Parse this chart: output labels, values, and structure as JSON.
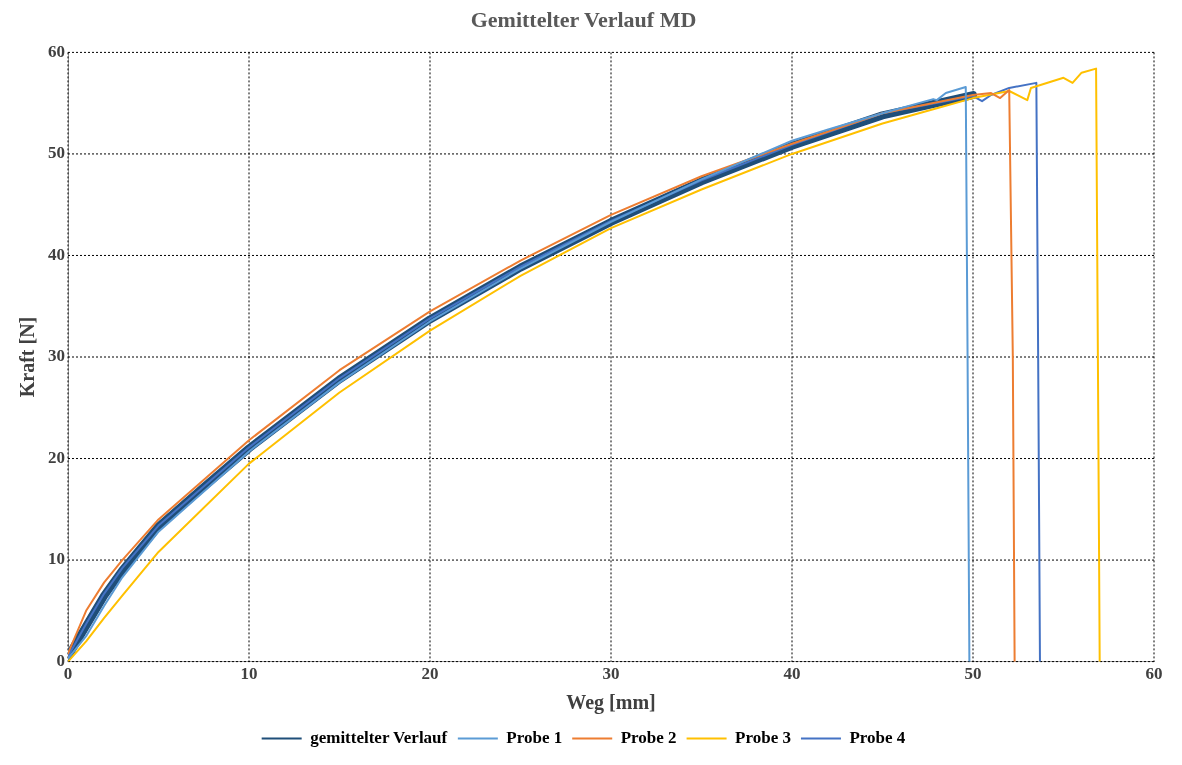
{
  "chart_data": {
    "type": "line",
    "title": "Gemittelter Verlauf MD",
    "xlabel": "Weg [mm]",
    "ylabel": "Kraft [N]",
    "xlim": [
      0,
      60
    ],
    "xticks": [
      0,
      10,
      20,
      30,
      40,
      50,
      60
    ],
    "ylim": [
      0,
      60
    ],
    "yticks": [
      0,
      10,
      20,
      30,
      40,
      50,
      60
    ],
    "grid": true,
    "legend": "bottom",
    "marker": "none",
    "line_style": "solid",
    "series": [
      {
        "name": "gemittelter Verlauf",
        "color": "#1f4e79",
        "x": [
          0,
          1,
          2,
          3,
          5,
          7.5,
          10,
          15,
          20,
          25,
          30,
          35,
          40,
          45,
          50
        ],
        "values": [
          0.5,
          3.5,
          6.5,
          9,
          13.3,
          17.2,
          21,
          27.8,
          33.7,
          38.8,
          43.3,
          47.3,
          50.8,
          53.8,
          55.8
        ]
      },
      {
        "name": "Probe 1",
        "color": "#5b9bd5",
        "x": [
          0,
          1,
          2,
          3,
          5,
          10,
          15,
          20,
          25,
          30,
          35,
          40,
          42,
          45,
          47.8,
          48,
          48.5,
          49.6,
          49.7,
          49.8
        ],
        "values": [
          0.3,
          2.5,
          5.5,
          8.3,
          12.8,
          20.7,
          27.5,
          33.5,
          38.7,
          43.3,
          47.5,
          51.3,
          52.4,
          54,
          55.4,
          55.3,
          56,
          56.6,
          30,
          0
        ]
      },
      {
        "name": "Probe 2",
        "color": "#ed7d31",
        "x": [
          0,
          1,
          2,
          3,
          5,
          10,
          15,
          20,
          25,
          30,
          35,
          40,
          45,
          50,
          51,
          51.5,
          52,
          52.2,
          52.3
        ],
        "values": [
          0.8,
          5,
          7.8,
          10,
          14,
          21.8,
          28.7,
          34.5,
          39.5,
          44,
          47.8,
          51,
          54,
          55.8,
          56,
          55.5,
          56.3,
          30,
          0
        ]
      },
      {
        "name": "Probe 3",
        "color": "#ffc000",
        "x": [
          0,
          1,
          2,
          3,
          5,
          10,
          15,
          20,
          25,
          30,
          35,
          40,
          45,
          48,
          50,
          52,
          53,
          53.2,
          55,
          55.5,
          56,
          56.8,
          56.9,
          57
        ],
        "values": [
          0,
          2,
          4.3,
          6.5,
          10.8,
          19.5,
          26.5,
          32.6,
          38,
          42.7,
          46.5,
          50,
          53,
          54.5,
          55.5,
          56.2,
          55.3,
          56.5,
          57.5,
          57,
          58,
          58.4,
          30,
          0
        ]
      },
      {
        "name": "Probe 4",
        "color": "#4472c4",
        "x": [
          0,
          1,
          2,
          3,
          5,
          10,
          15,
          20,
          25,
          30,
          35,
          40,
          45,
          50,
          50.5,
          51,
          52,
          53.5,
          53.6,
          53.7
        ],
        "values": [
          0.5,
          3.7,
          6.7,
          9.2,
          13.4,
          21.1,
          27.9,
          33.8,
          38.9,
          43.4,
          47.4,
          50.9,
          54,
          55.7,
          55.2,
          55.8,
          56.5,
          57,
          30,
          0
        ]
      }
    ]
  }
}
